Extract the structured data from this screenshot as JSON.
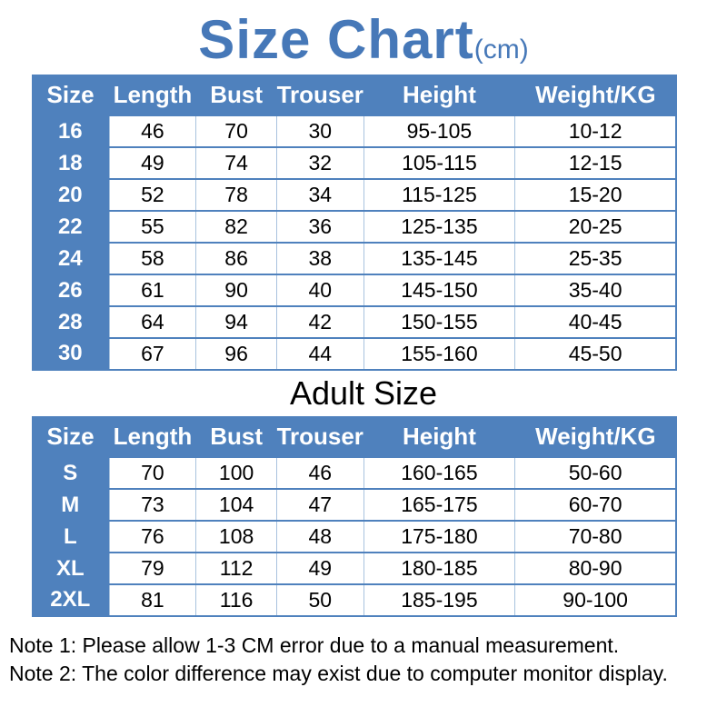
{
  "title": {
    "text": "Size Chart",
    "unit": "(cm)"
  },
  "adult_heading": "Adult Size",
  "notes": [
    "Note 1: Please allow 1-3 CM error due to a manual measurement.",
    "Note 2: The color difference may exist due to computer monitor display."
  ],
  "colors": {
    "table_blue": "#4f81bd",
    "title_blue": "#4678b8",
    "light_border": "#a8c2de",
    "header_text": "#ffffff",
    "data_text": "#000000"
  },
  "chart_data": [
    {
      "type": "table",
      "name": "kids-size-table",
      "title": "Size Chart (cm)",
      "columns": [
        "Size",
        "Length",
        "Bust",
        "Trouser",
        "Height",
        "Weight/KG"
      ],
      "rows": [
        [
          "16",
          "46",
          "70",
          "30",
          "95-105",
          "10-12"
        ],
        [
          "18",
          "49",
          "74",
          "32",
          "105-115",
          "12-15"
        ],
        [
          "20",
          "52",
          "78",
          "34",
          "115-125",
          "15-20"
        ],
        [
          "22",
          "55",
          "82",
          "36",
          "125-135",
          "20-25"
        ],
        [
          "24",
          "58",
          "86",
          "38",
          "135-145",
          "25-35"
        ],
        [
          "26",
          "61",
          "90",
          "40",
          "145-150",
          "35-40"
        ],
        [
          "28",
          "64",
          "94",
          "42",
          "150-155",
          "40-45"
        ],
        [
          "30",
          "67",
          "96",
          "44",
          "155-160",
          "45-50"
        ]
      ]
    },
    {
      "type": "table",
      "name": "adult-size-table",
      "title": "Adult Size",
      "columns": [
        "Size",
        "Length",
        "Bust",
        "Trouser",
        "Height",
        "Weight/KG"
      ],
      "rows": [
        [
          "S",
          "70",
          "100",
          "46",
          "160-165",
          "50-60"
        ],
        [
          "M",
          "73",
          "104",
          "47",
          "165-175",
          "60-70"
        ],
        [
          "L",
          "76",
          "108",
          "48",
          "175-180",
          "70-80"
        ],
        [
          "XL",
          "79",
          "112",
          "49",
          "180-185",
          "80-90"
        ],
        [
          "2XL",
          "81",
          "116",
          "50",
          "185-195",
          "90-100"
        ]
      ]
    }
  ]
}
